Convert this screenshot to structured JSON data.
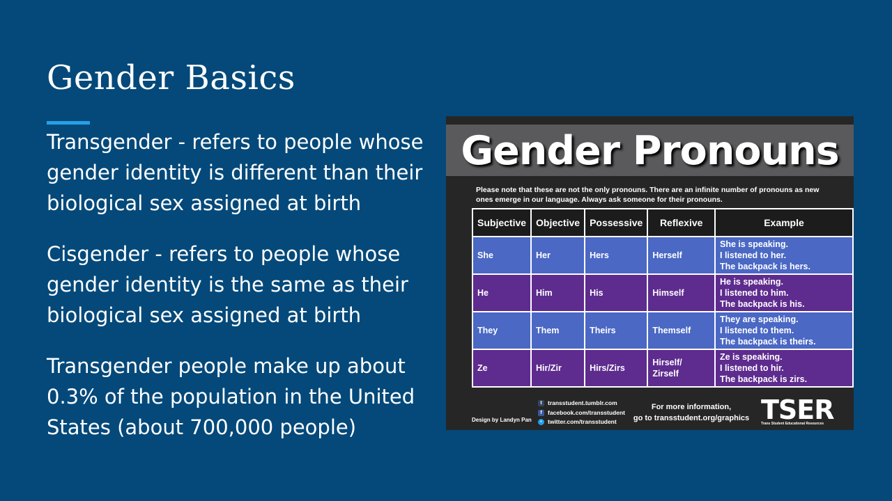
{
  "slide": {
    "title": "Gender Basics",
    "paragraphs": [
      "Transgender - refers to people whose gender identity is different than their biological sex assigned at birth",
      "Cisgender - refers to people whose gender identity is the same as their biological sex assigned at birth",
      "Transgender people make up about 0.3% of the population in the United States (about 700,000 people)"
    ]
  },
  "graphic": {
    "title": "Gender Pronouns",
    "note": "Please note that these are not the only pronouns. There are an infinite number of pronouns as new ones emerge in our language. Always ask someone for their pronouns.",
    "headers": [
      "Subjective",
      "Objective",
      "Possessive",
      "Reflexive",
      "Example"
    ],
    "rows": [
      {
        "subjective": "She",
        "objective": "Her",
        "possessive": "Hers",
        "reflexive": "Herself",
        "example": [
          "She is speaking.",
          "I listened to her.",
          "The backpack is hers."
        ]
      },
      {
        "subjective": "He",
        "objective": "Him",
        "possessive": "His",
        "reflexive": "Himself",
        "example": [
          "He is speaking.",
          "I listened to him.",
          "The backpack is his."
        ]
      },
      {
        "subjective": "They",
        "objective": "Them",
        "possessive": "Theirs",
        "reflexive": "Themself",
        "example": [
          "They are speaking.",
          "I listened to them.",
          "The backpack is theirs."
        ]
      },
      {
        "subjective": "Ze",
        "objective": "Hir/Zir",
        "possessive": "Hirs/Zirs",
        "reflexive": "Hirself/ Zirself",
        "example": [
          "Ze is speaking.",
          "I listened to hir.",
          "The backpack is zirs."
        ]
      }
    ],
    "credit": "Design by Landyn Pan",
    "social": [
      {
        "icon": "tumblr-icon",
        "glyph": "t",
        "text": "transstudent.tumblr.com"
      },
      {
        "icon": "facebook-icon",
        "glyph": "f",
        "text": "facebook.com/transstudent"
      },
      {
        "icon": "twitter-icon",
        "glyph": "•",
        "text": "twitter.com/transstudent"
      }
    ],
    "more_info_line1": "For more information,",
    "more_info_line2": "go to transstudent.org/graphics",
    "logo_text": "TSER",
    "logo_subtext": "Trans Student Educational Resources"
  },
  "colors": {
    "background": "#04497a",
    "accent": "#26a0e6",
    "row_blue": "#4a68c4",
    "row_purple": "#5e2b8e"
  }
}
